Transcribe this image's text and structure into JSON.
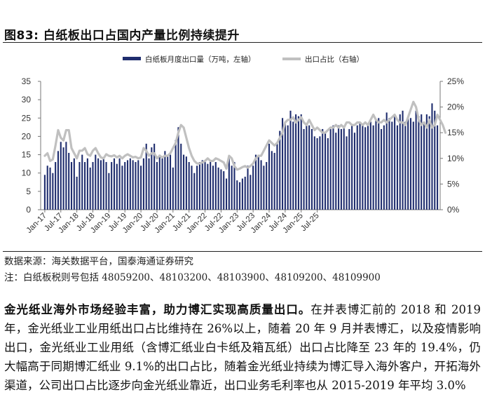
{
  "figure": {
    "title": "图83:  白纸板出口占国内产量比例持续提升",
    "source": "数据来源：海关数据平台，国泰海通证券研究",
    "note": "注：白纸板税则号包括 48059200、48103200、48103900、48109200、48109900"
  },
  "body_text": {
    "bold": "金光纸业海外市场经验丰富，助力博汇实现高质量出口。",
    "rest": "在并表博汇前的 2018 和 2019 年，金光纸业工业用纸出口占比维持在 26%以上，随着 20 年 9 月并表博汇，以及疫情影响出口，金光纸业工业用纸（含博汇纸业白卡纸及箱瓦纸）出口占比降至 23 年的 19.4%，仍大幅高于同期博汇纸业 9.1%的出口占比，随着金光纸业持续为博汇导入海外客户，开拓海外渠道，公司出口占比逐步向金光纸业靠近，出口业务毛利率也从 2015-2019 年平均 3.0%"
  },
  "chart_data": {
    "type": "bar+line",
    "legend": [
      "白纸板月度出口量（万吨，左轴）",
      "出口占比（右轴）"
    ],
    "legend_position": "top",
    "colors": {
      "bar": "#1f2d6e",
      "line": "#c0c0c0"
    },
    "y_left": {
      "ticks": [
        "0",
        "5",
        "10",
        "15",
        "20",
        "25",
        "30",
        "35"
      ],
      "min": 0,
      "max": 35
    },
    "y_right": {
      "ticks": [
        "0%",
        "5%",
        "10%",
        "15%",
        "20%",
        "25%"
      ],
      "min": 0,
      "max": 25
    },
    "x_tick_labels": [
      "Jan-17",
      "Jul-17",
      "Jan-18",
      "Jul-18",
      "Jan-19",
      "Jul-19",
      "Jan-20",
      "Jul-20",
      "Jan-21",
      "Jul-21",
      "Jan-22",
      "Jul-22",
      "Jan-23",
      "Jul-23",
      "Jan-24",
      "Jul-24",
      "Jan-25",
      "Jul-25"
    ],
    "start_month": "Jan-17",
    "grid": false,
    "bar_values": [
      9.5,
      12,
      11.5,
      10,
      13,
      16,
      18.5,
      17,
      18.5,
      15.5,
      13,
      14,
      9,
      13,
      15,
      13,
      14,
      11.5,
      13,
      15,
      14,
      13.5,
      14,
      13,
      10,
      13,
      14,
      12.5,
      14,
      12,
      13,
      13.5,
      14,
      13.5,
      13,
      13.5,
      12,
      14,
      18,
      14,
      17,
      18,
      13,
      15,
      14,
      16,
      15,
      15,
      11.5,
      19,
      22.5,
      18,
      15,
      14.5,
      13,
      12,
      10,
      12,
      13,
      13.5,
      13,
      12.5,
      13,
      12,
      13,
      11.5,
      11,
      10.5,
      8.5,
      14,
      12,
      13,
      8,
      7.5,
      8.5,
      9,
      12,
      9.5,
      12,
      15,
      15,
      13.5,
      12,
      13,
      18,
      16,
      15.5,
      18,
      21.5,
      25,
      24,
      23,
      27,
      24,
      26,
      25.5,
      26,
      22,
      23.5,
      23,
      22,
      20,
      19.5,
      20,
      22,
      21,
      19.5,
      22,
      23,
      21,
      23,
      22,
      22.5,
      20,
      22,
      23,
      21,
      23,
      24,
      23.5,
      22.5,
      23,
      24,
      23,
      24.5,
      25,
      22,
      23,
      26.5,
      25,
      24,
      26,
      23,
      26,
      27,
      24,
      25.5,
      25,
      24,
      27,
      25.5,
      26,
      23.5,
      26,
      25.5,
      29,
      27,
      23
    ],
    "line_values": [
      10.5,
      11,
      9.5,
      9.8,
      12.5,
      15.5,
      14,
      13.5,
      15.5,
      15.5,
      12,
      11,
      10,
      11.5,
      11.5,
      12,
      10.8,
      10.5,
      11.5,
      12,
      11,
      10.2,
      10,
      10.8,
      10.5,
      10.4,
      10.6,
      10.2,
      10.5,
      10,
      10.5,
      10.8,
      10.5,
      10.2,
      10.3,
      10,
      10.2,
      12,
      11.5,
      10.5,
      11,
      11,
      10,
      10.5,
      10.2,
      10.5,
      10.5,
      11,
      12,
      13,
      15,
      16.5,
      16,
      14,
      12,
      10.5,
      9.5,
      9,
      9,
      9.2,
      9.5,
      10,
      9.5,
      9.5,
      10,
      9.8,
      9.5,
      9.2,
      8,
      10.5,
      10,
      8.5,
      7.8,
      8,
      8.3,
      8.5,
      8.2,
      8.5,
      9,
      10,
      10.5,
      10.5,
      11.5,
      12.5,
      13.5,
      13,
      12.5,
      13,
      14,
      15,
      17,
      17.5,
      17.5,
      18,
      17,
      17.5,
      18,
      17,
      16.5,
      17.5,
      16.5,
      15.5,
      16,
      15.5,
      15,
      15,
      15.5,
      16,
      16,
      16.5,
      16,
      16.5,
      16,
      17,
      17,
      16.5,
      16.5,
      17,
      17,
      16.5,
      17,
      16.5,
      17.5,
      18.5,
      17.5,
      17,
      17,
      17.5,
      17,
      17.5,
      18,
      18.5,
      17.5,
      17,
      17,
      16.5,
      18,
      19.5,
      21,
      20,
      17.5,
      16.5,
      17,
      16,
      17.5,
      16,
      16.5,
      18.5,
      17.5,
      16.5,
      15
    ]
  }
}
